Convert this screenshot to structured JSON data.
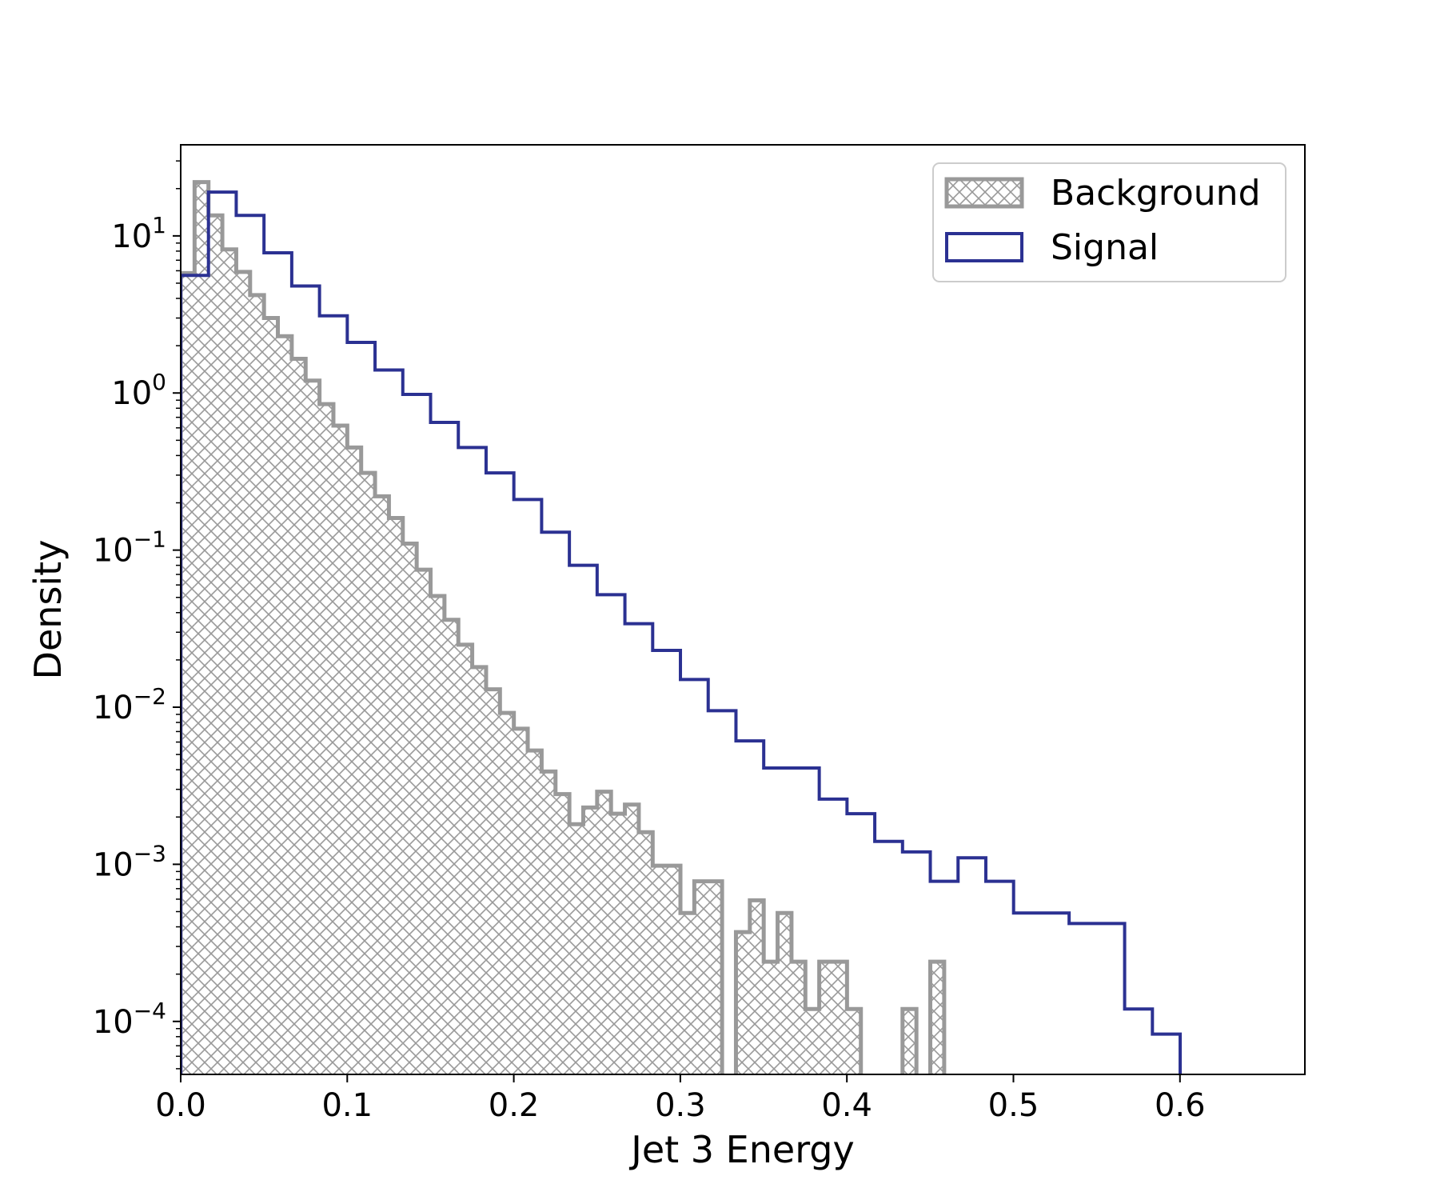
{
  "chart_data": {
    "type": "histogram",
    "xlabel": "Jet 3 Energy",
    "ylabel": "Density",
    "xlim": [
      0.0,
      0.675
    ],
    "ylim": [
      4.6e-05,
      38
    ],
    "yscale": "log",
    "x_ticks": [
      "0.0",
      "0.1",
      "0.2",
      "0.3",
      "0.4",
      "0.5",
      "0.6"
    ],
    "y_ticks": [
      {
        "base": "10",
        "exp": "1"
      },
      {
        "base": "10",
        "exp": "0"
      },
      {
        "base": "10",
        "exp": "−1"
      },
      {
        "base": "10",
        "exp": "−2"
      },
      {
        "base": "10",
        "exp": "−3"
      },
      {
        "base": "10",
        "exp": "−4"
      }
    ],
    "grid": false,
    "legend_position": "top-right",
    "legend": [
      {
        "label": "Background",
        "style": "crosshatch-filled",
        "color": "#999999"
      },
      {
        "label": "Signal",
        "style": "step-outline",
        "color": "#2b3192"
      }
    ],
    "bin_edges": [
      0.0,
      0.01667,
      0.03333,
      0.05,
      0.06667,
      0.08333,
      0.1,
      0.11667,
      0.13333,
      0.15,
      0.16667,
      0.18333,
      0.2,
      0.21667,
      0.23333,
      0.25,
      0.26667,
      0.28333,
      0.3,
      0.31667,
      0.33333,
      0.35,
      0.36667,
      0.38333,
      0.4,
      0.41667,
      0.43333,
      0.45,
      0.46667,
      0.48333,
      0.5,
      0.51667,
      0.53333,
      0.55,
      0.56667,
      0.58333,
      0.6,
      0.61667,
      0.63333,
      0.65,
      0.66667
    ],
    "series": [
      {
        "name": "Background",
        "color": "#999999",
        "step": 0.5,
        "values": [
          5.8,
          22,
          13.5,
          8.2,
          5.9,
          4.2,
          3.0,
          2.3,
          1.65,
          1.2,
          0.85,
          0.62,
          0.45,
          0.31,
          0.22,
          0.16,
          0.11,
          0.075,
          0.051,
          0.036,
          0.025,
          0.018,
          0.013,
          0.0092,
          0.0073,
          0.0053,
          0.0039,
          0.0028,
          0.0018,
          0.0023,
          0.0029,
          0.0021,
          0.0024,
          0.0016,
          0.00098,
          0.00098,
          0.00049,
          0.00078,
          0.00078,
          0,
          0.00037,
          0.00059,
          0.00024,
          0.00049,
          0.00024,
          0.00012,
          0.00024,
          0.00024,
          0.00012,
          0,
          0,
          0,
          0.00012,
          0,
          0.00024
        ]
      },
      {
        "name": "Signal",
        "color": "#2b3192",
        "step": 1,
        "values": [
          5.6,
          19,
          13.5,
          7.8,
          4.8,
          3.1,
          2.1,
          1.4,
          0.98,
          0.65,
          0.45,
          0.31,
          0.21,
          0.13,
          0.08,
          0.052,
          0.034,
          0.023,
          0.015,
          0.0095,
          0.0061,
          0.0041,
          0.0041,
          0.0026,
          0.0021,
          0.0014,
          0.0012,
          0.00078,
          0.0011,
          0.00078,
          0.00049,
          0.00049,
          0.00042,
          0.00042,
          0.00012,
          8.3e-05,
          0
        ]
      }
    ]
  }
}
